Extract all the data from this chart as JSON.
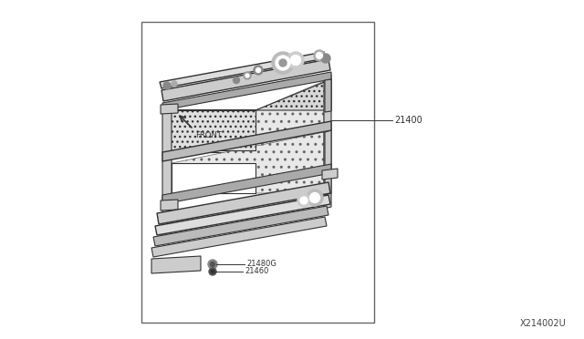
{
  "bg_color": "#ffffff",
  "border_color": "#666666",
  "line_color": "#333333",
  "hatch_color": "#888888",
  "diagram_id": "X214002U",
  "front_text": "FRONT",
  "label_21400": "21400",
  "label_21480G": "21480G",
  "label_21460": "21460",
  "figsize": [
    6.4,
    3.72
  ],
  "dpi": 100
}
